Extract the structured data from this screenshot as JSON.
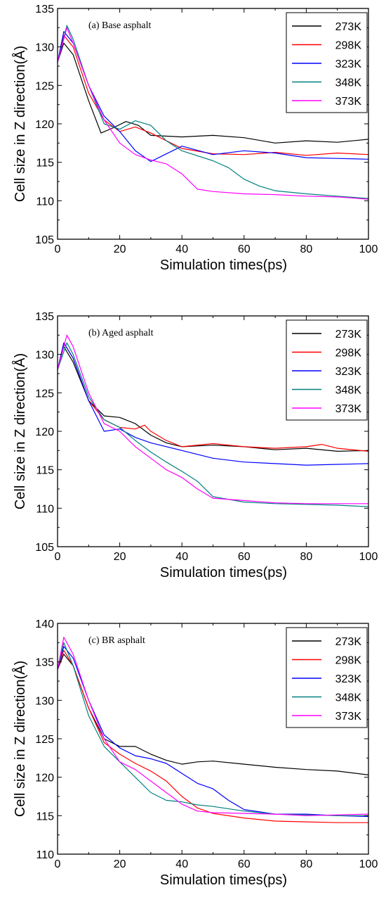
{
  "chart_data": [
    {
      "type": "line",
      "title": "(a) Base asphalt",
      "xlabel": "Simulation times(ps)",
      "ylabel": "Cell size in Z direction(Å)",
      "xlim": [
        0,
        100
      ],
      "ylim": [
        105,
        135
      ],
      "xticks": [
        0,
        20,
        40,
        60,
        80,
        100
      ],
      "yticks": [
        105,
        110,
        115,
        120,
        125,
        130,
        135
      ],
      "legend_position": "top-right",
      "series": [
        {
          "name": "273K",
          "color": "#000000",
          "x": [
            0,
            2,
            5,
            10,
            14,
            18,
            22,
            26,
            30,
            40,
            50,
            60,
            70,
            80,
            90,
            100
          ],
          "y": [
            128,
            130.5,
            129,
            123,
            118.8,
            119.5,
            120.3,
            119.8,
            118.5,
            118.3,
            118.5,
            118.2,
            117.5,
            117.8,
            117.6,
            118
          ]
        },
        {
          "name": "298K",
          "color": "#ff0000",
          "x": [
            0,
            2,
            5,
            10,
            15,
            20,
            25,
            30,
            40,
            50,
            60,
            70,
            80,
            90,
            100
          ],
          "y": [
            128,
            131.5,
            130,
            124,
            120.5,
            119,
            119.6,
            118.8,
            116.8,
            116.1,
            116,
            116.3,
            115.9,
            116.2,
            116
          ]
        },
        {
          "name": "323K",
          "color": "#0000ff",
          "x": [
            0,
            2,
            5,
            10,
            15,
            20,
            25,
            30,
            40,
            50,
            60,
            70,
            80,
            90,
            100
          ],
          "y": [
            128,
            132,
            130.5,
            125,
            121,
            119,
            116.5,
            115.1,
            117.1,
            116,
            116.5,
            116.2,
            115.6,
            115.5,
            115.4
          ]
        },
        {
          "name": "348K",
          "color": "#008080",
          "x": [
            0,
            3,
            5,
            10,
            15,
            20,
            25,
            30,
            35,
            40,
            50,
            55,
            60,
            65,
            70,
            80,
            90,
            100
          ],
          "y": [
            128,
            132.8,
            131,
            125,
            120,
            119.3,
            120.4,
            119.8,
            117.8,
            116.5,
            115.2,
            114.3,
            112.8,
            111.9,
            111.3,
            110.9,
            110.6,
            110.3
          ]
        },
        {
          "name": "373K",
          "color": "#ff00ff",
          "x": [
            0,
            3,
            5,
            10,
            15,
            20,
            25,
            30,
            35,
            40,
            45,
            50,
            60,
            70,
            80,
            90,
            100
          ],
          "y": [
            128,
            132.5,
            130.5,
            125,
            120.5,
            117.5,
            116,
            115.3,
            114.8,
            113.5,
            111.5,
            111.2,
            110.9,
            110.8,
            110.6,
            110.5,
            110.2
          ]
        }
      ]
    },
    {
      "type": "line",
      "title": "(b) Aged asphalt",
      "xlabel": "Simulation times(ps)",
      "ylabel": "Cell size in Z direction(Å)",
      "xlim": [
        0,
        100
      ],
      "ylim": [
        105,
        135
      ],
      "xticks": [
        0,
        20,
        40,
        60,
        80,
        100
      ],
      "yticks": [
        105,
        110,
        115,
        120,
        125,
        130,
        135
      ],
      "legend_position": "top-right",
      "series": [
        {
          "name": "273K",
          "color": "#000000",
          "x": [
            0,
            2,
            5,
            10,
            15,
            20,
            25,
            30,
            35,
            40,
            50,
            60,
            70,
            80,
            90,
            100
          ],
          "y": [
            128,
            131,
            129,
            124,
            122,
            121.8,
            121,
            119.5,
            118.5,
            118,
            118.2,
            118,
            117.6,
            117.8,
            117.4,
            117.5
          ]
        },
        {
          "name": "298K",
          "color": "#ff0000",
          "x": [
            0,
            2,
            5,
            10,
            15,
            20,
            25,
            28,
            30,
            35,
            40,
            50,
            60,
            70,
            80,
            85,
            90,
            100
          ],
          "y": [
            128,
            131.5,
            129.5,
            124,
            121.5,
            120.5,
            120.3,
            120.8,
            120,
            118.8,
            118,
            118.4,
            118,
            117.8,
            118,
            118.3,
            117.8,
            117.4
          ]
        },
        {
          "name": "323K",
          "color": "#0000ff",
          "x": [
            0,
            2,
            5,
            10,
            15,
            20,
            25,
            30,
            40,
            50,
            60,
            70,
            80,
            90,
            100
          ],
          "y": [
            128,
            131.5,
            129.5,
            124,
            120,
            120.3,
            119.2,
            118.5,
            117.5,
            116.5,
            116,
            115.8,
            115.6,
            115.7,
            115.8
          ]
        },
        {
          "name": "348K",
          "color": "#008080",
          "x": [
            0,
            3,
            5,
            10,
            15,
            20,
            25,
            30,
            35,
            40,
            45,
            50,
            60,
            70,
            80,
            90,
            100
          ],
          "y": [
            128,
            131.5,
            130,
            124.5,
            121.5,
            120.5,
            118.8,
            117.3,
            116,
            114.8,
            113.5,
            111.5,
            110.8,
            110.6,
            110.5,
            110.4,
            110.2
          ]
        },
        {
          "name": "373K",
          "color": "#ff00ff",
          "x": [
            0,
            3,
            5,
            10,
            15,
            20,
            25,
            30,
            35,
            40,
            45,
            50,
            60,
            70,
            80,
            90,
            100
          ],
          "y": [
            128,
            132.5,
            131,
            125,
            121,
            120,
            118,
            116.5,
            115,
            114,
            112.5,
            111.3,
            111,
            110.7,
            110.6,
            110.6,
            110.6
          ]
        }
      ]
    },
    {
      "type": "line",
      "title": "(c) BR asphalt",
      "xlabel": "Simulation times(ps)",
      "ylabel": "Cell size in Z direction(Å)",
      "xlim": [
        0,
        100
      ],
      "ylim": [
        110,
        140
      ],
      "xticks": [
        0,
        20,
        40,
        60,
        80,
        100
      ],
      "yticks": [
        110,
        115,
        120,
        125,
        130,
        135,
        140
      ],
      "legend_position": "top-right",
      "series": [
        {
          "name": "273K",
          "color": "#000000",
          "x": [
            0,
            2,
            5,
            10,
            15,
            20,
            25,
            30,
            35,
            40,
            45,
            50,
            60,
            70,
            80,
            90,
            100
          ],
          "y": [
            134,
            136,
            134.5,
            129,
            125,
            124,
            124,
            123,
            122.2,
            121.7,
            122,
            122.1,
            121.7,
            121.3,
            121,
            120.8,
            120.3
          ]
        },
        {
          "name": "298K",
          "color": "#ff0000",
          "x": [
            0,
            2,
            5,
            10,
            15,
            20,
            25,
            30,
            35,
            40,
            45,
            50,
            60,
            70,
            80,
            90,
            100
          ],
          "y": [
            134,
            136.5,
            134.5,
            129,
            124.5,
            123,
            121.8,
            120.8,
            119.5,
            117.5,
            116,
            115.3,
            114.7,
            114.3,
            114.2,
            114.1,
            114.1
          ]
        },
        {
          "name": "323K",
          "color": "#0000ff",
          "x": [
            0,
            2,
            5,
            10,
            15,
            20,
            25,
            30,
            35,
            40,
            45,
            50,
            55,
            60,
            70,
            80,
            90,
            100
          ],
          "y": [
            134,
            137,
            135.5,
            130,
            125.5,
            123.8,
            122.8,
            122.4,
            121.8,
            120.5,
            119.2,
            118.5,
            117,
            115.8,
            115.2,
            115.2,
            115,
            114.9
          ]
        },
        {
          "name": "348K",
          "color": "#008080",
          "x": [
            0,
            2,
            5,
            10,
            15,
            20,
            25,
            30,
            35,
            40,
            45,
            50,
            60,
            70,
            80,
            90,
            100
          ],
          "y": [
            134,
            137.5,
            134.5,
            128,
            124,
            122,
            120,
            118,
            117,
            116.8,
            116.4,
            116.2,
            115.6,
            115.2,
            115.1,
            115,
            115
          ]
        },
        {
          "name": "373K",
          "color": "#ff00ff",
          "x": [
            0,
            2,
            5,
            10,
            15,
            20,
            25,
            30,
            35,
            40,
            45,
            50,
            60,
            70,
            80,
            90,
            100
          ],
          "y": [
            134,
            138.2,
            136,
            130,
            125,
            122,
            121,
            119.5,
            118,
            116.5,
            115.6,
            115.4,
            115.3,
            115.2,
            115,
            115.1,
            115.2
          ]
        }
      ]
    }
  ]
}
